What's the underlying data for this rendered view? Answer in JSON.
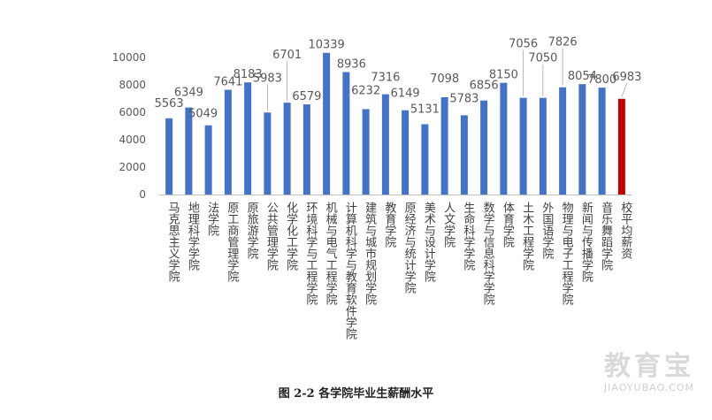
{
  "chart_data": {
    "type": "bar",
    "categories": [
      "马克思主义学院",
      "地理科学学院",
      "法学院",
      "原工商管理学院",
      "原旅游学院",
      "公共管理学院",
      "化学化工学院",
      "环境科学与工程学院",
      "机械与电气工程学院",
      "计算机科学与教育软件学院",
      "建筑与城市规划学院",
      "教育学院",
      "原经济与统计学院",
      "美术与设计学院",
      "人文学院",
      "生命科学学院",
      "数学与信息科学学院",
      "体育学院",
      "土木工程学院",
      "外国语学院",
      "物理与电子工程学院",
      "新闻与传播学院",
      "音乐舞蹈学院",
      "校平均薪资"
    ],
    "values": [
      5563,
      6349,
      5049,
      7641,
      8183,
      5983,
      6701,
      6579,
      10339,
      8936,
      6232,
      7316,
      6149,
      5131,
      7098,
      5783,
      6856,
      8150,
      7056,
      7050,
      7826,
      8054,
      7800,
      6983
    ],
    "value_labels": [
      "5563",
      "6349",
      "5049",
      "7641",
      "8183",
      "5983",
      "6701",
      "6579",
      "10339",
      "8936",
      "6232",
      "7316",
      "6149",
      "5131",
      "7098",
      "5783",
      "6856",
      "8150",
      "7056",
      "7050",
      "7826",
      "8054",
      "7800",
      "6983"
    ],
    "highlight_index": 23,
    "ylim": [
      0,
      10000
    ],
    "yticks": [
      0,
      2000,
      4000,
      6000,
      8000,
      10000
    ],
    "ytick_labels": [
      "0",
      "2000",
      "4000",
      "6000",
      "8000",
      "10000"
    ],
    "colors": {
      "bar": "#4472c4",
      "highlight": "#c00000"
    },
    "grid": false,
    "legend": "none"
  },
  "caption": "图 2-2  各学院毕业生薪酬水平",
  "watermark": {
    "title": "教育宝",
    "subtitle": "JIAOYUBAO.COM"
  }
}
